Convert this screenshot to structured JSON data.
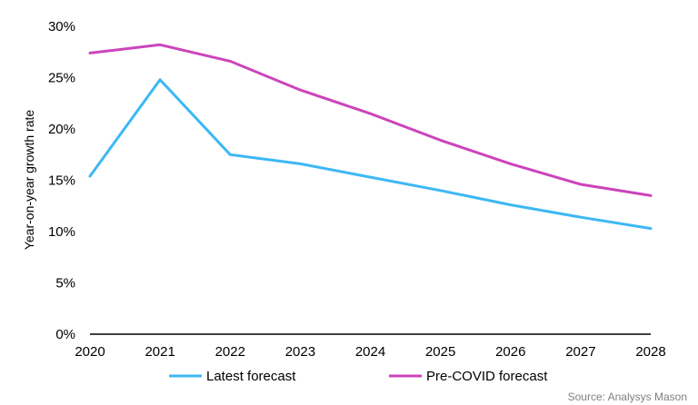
{
  "chart_data": {
    "type": "line",
    "x": [
      "2020",
      "2021",
      "2022",
      "2023",
      "2024",
      "2025",
      "2026",
      "2027",
      "2028"
    ],
    "ylabel": "Year-on-year growth rate",
    "xlabel": "",
    "ylim": [
      0,
      30
    ],
    "yticks": [
      "0%",
      "5%",
      "10%",
      "15%",
      "20%",
      "25%",
      "30%"
    ],
    "grid": false,
    "legend_position": "bottom",
    "series": [
      {
        "name": "Latest forecast",
        "color": "#3db8f5",
        "values": [
          15.4,
          24.8,
          17.5,
          16.6,
          15.3,
          14.0,
          12.6,
          11.4,
          10.3
        ]
      },
      {
        "name": "Pre-COVID forecast",
        "color": "#cc44bb",
        "values": [
          27.4,
          28.2,
          26.6,
          23.8,
          21.5,
          18.9,
          16.6,
          14.6,
          13.5
        ]
      }
    ],
    "source": "Source: Analysys Mason"
  }
}
